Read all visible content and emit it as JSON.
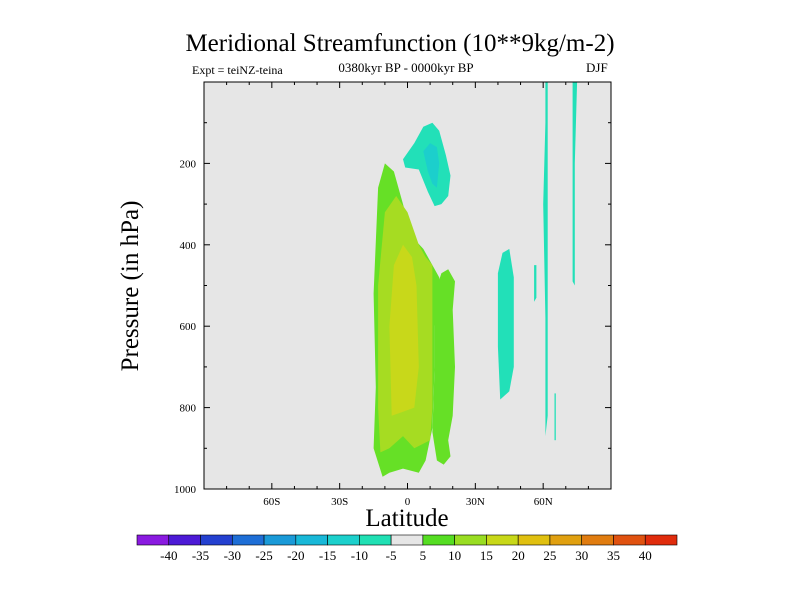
{
  "chart_data": {
    "type": "contour",
    "title": "Meridional Streamfunction (10**9kg/m-2)",
    "expt_label": "Expt = teiNZ-teina",
    "subtitle": "0380kyr BP - 0000kyr BP",
    "season": "DJF",
    "xlabel": "Latitude",
    "ylabel": "Pressure (in hPa)",
    "xlim": [
      -90,
      90
    ],
    "ylim": [
      1000,
      0
    ],
    "x_ticks": [
      {
        "value": -60,
        "label": "60S"
      },
      {
        "value": -30,
        "label": "30S"
      },
      {
        "value": 0,
        "label": "0"
      },
      {
        "value": 30,
        "label": "30N"
      },
      {
        "value": 60,
        "label": "60N"
      }
    ],
    "y_ticks": [
      {
        "value": 200,
        "label": "200"
      },
      {
        "value": 400,
        "label": "400"
      },
      {
        "value": 600,
        "label": "600"
      },
      {
        "value": 800,
        "label": "800"
      },
      {
        "value": 1000,
        "label": "1000"
      }
    ],
    "colorbar": {
      "levels": [
        -40,
        -35,
        -30,
        -25,
        -20,
        -15,
        -10,
        -5,
        5,
        10,
        15,
        20,
        25,
        30,
        35,
        40
      ],
      "labels": [
        "-40",
        "-35",
        "-30",
        "-25",
        "-20",
        "-15",
        "-10",
        "-5",
        "5",
        "10",
        "15",
        "20",
        "25",
        "30",
        "35",
        "40"
      ],
      "colors": [
        "#8a1ae0",
        "#4d1ad6",
        "#2440d0",
        "#1e6ed6",
        "#1a9ad8",
        "#18b8d8",
        "#1cd0cc",
        "#20e0b4",
        "#e6e6e6",
        "#55dd22",
        "#99dd22",
        "#c8d818",
        "#e0c010",
        "#e0a010",
        "#e07c10",
        "#e05210",
        "#e02c0c"
      ]
    },
    "regions": [
      {
        "level": 10,
        "color": "#66e026",
        "points": [
          [
            -11,
            970
          ],
          [
            -15,
            900
          ],
          [
            -14,
            750
          ],
          [
            -15,
            520
          ],
          [
            -13,
            260
          ],
          [
            -10,
            200
          ],
          [
            -6,
            220
          ],
          [
            -2,
            300
          ],
          [
            2,
            380
          ],
          [
            7,
            410
          ],
          [
            11,
            450
          ],
          [
            14,
            480
          ],
          [
            15,
            530
          ],
          [
            12,
            600
          ],
          [
            12,
            700
          ],
          [
            11,
            850
          ],
          [
            8,
            930
          ],
          [
            5,
            960
          ],
          [
            -2,
            950
          ],
          [
            -8,
            960
          ]
        ]
      },
      {
        "level": 10,
        "color": "#66e026",
        "points": [
          [
            12,
            520
          ],
          [
            15,
            470
          ],
          [
            18,
            460
          ],
          [
            21,
            490
          ],
          [
            20,
            560
          ],
          [
            21,
            700
          ],
          [
            20,
            820
          ],
          [
            18,
            880
          ],
          [
            19,
            920
          ],
          [
            16,
            940
          ],
          [
            13,
            930
          ],
          [
            11,
            860
          ],
          [
            12,
            700
          ],
          [
            12,
            600
          ]
        ]
      },
      {
        "level": 15,
        "color": "#a6dc22",
        "points": [
          [
            -12,
            910
          ],
          [
            -13,
            800
          ],
          [
            -13,
            500
          ],
          [
            -10,
            320
          ],
          [
            -5,
            280
          ],
          [
            0,
            320
          ],
          [
            5,
            400
          ],
          [
            8,
            430
          ],
          [
            11,
            450
          ],
          [
            11,
            800
          ],
          [
            10,
            880
          ],
          [
            3,
            900
          ],
          [
            -2,
            870
          ],
          [
            -8,
            900
          ]
        ]
      },
      {
        "level": 20,
        "color": "#c8d81a",
        "points": [
          [
            -7,
            820
          ],
          [
            -8,
            600
          ],
          [
            -6,
            450
          ],
          [
            -2,
            400
          ],
          [
            2,
            430
          ],
          [
            4,
            500
          ],
          [
            5,
            700
          ],
          [
            3,
            800
          ],
          [
            -2,
            810
          ]
        ]
      },
      {
        "level": -5,
        "color": "#22e0b8",
        "points": [
          [
            3,
            150
          ],
          [
            7,
            110
          ],
          [
            11,
            100
          ],
          [
            14,
            120
          ],
          [
            17,
            180
          ],
          [
            19,
            230
          ],
          [
            18,
            280
          ],
          [
            15,
            300
          ],
          [
            12,
            305
          ],
          [
            9,
            270
          ],
          [
            5,
            215
          ],
          [
            -1,
            210
          ],
          [
            -2,
            190
          ]
        ]
      },
      {
        "level": -10,
        "color": "#1ccfcc",
        "points": [
          [
            7,
            170
          ],
          [
            10,
            150
          ],
          [
            13,
            160
          ],
          [
            14,
            200
          ],
          [
            13,
            260
          ],
          [
            11,
            250
          ],
          [
            9,
            220
          ]
        ]
      },
      {
        "level": -5,
        "color": "#22e0b8",
        "points": [
          [
            41,
            780
          ],
          [
            40,
            650
          ],
          [
            40,
            470
          ],
          [
            42,
            420
          ],
          [
            45,
            410
          ],
          [
            47,
            480
          ],
          [
            47,
            700
          ],
          [
            45,
            760
          ]
        ]
      },
      {
        "level": -5,
        "color": "#22e0b8",
        "points": [
          [
            56,
            450
          ],
          [
            57,
            450
          ],
          [
            57,
            530
          ],
          [
            56,
            540
          ]
        ]
      },
      {
        "level": -5,
        "color": "#22e0b8",
        "points": [
          [
            61,
            800
          ],
          [
            61,
            580
          ],
          [
            60,
            300
          ],
          [
            61,
            100
          ],
          [
            61,
            0
          ],
          [
            62,
            0
          ],
          [
            62,
            300
          ],
          [
            62,
            550
          ],
          [
            62,
            820
          ],
          [
            61,
            870
          ]
        ]
      },
      {
        "level": -5,
        "color": "#22e0b8",
        "points": [
          [
            65,
            765
          ],
          [
            65.6,
            765
          ],
          [
            65.6,
            880
          ],
          [
            65,
            880
          ]
        ]
      },
      {
        "level": -5,
        "color": "#22e0b8",
        "points": [
          [
            73,
            490
          ],
          [
            73,
            200
          ],
          [
            73,
            0
          ],
          [
            75,
            0
          ],
          [
            74,
            200
          ],
          [
            74,
            500
          ]
        ]
      }
    ]
  }
}
